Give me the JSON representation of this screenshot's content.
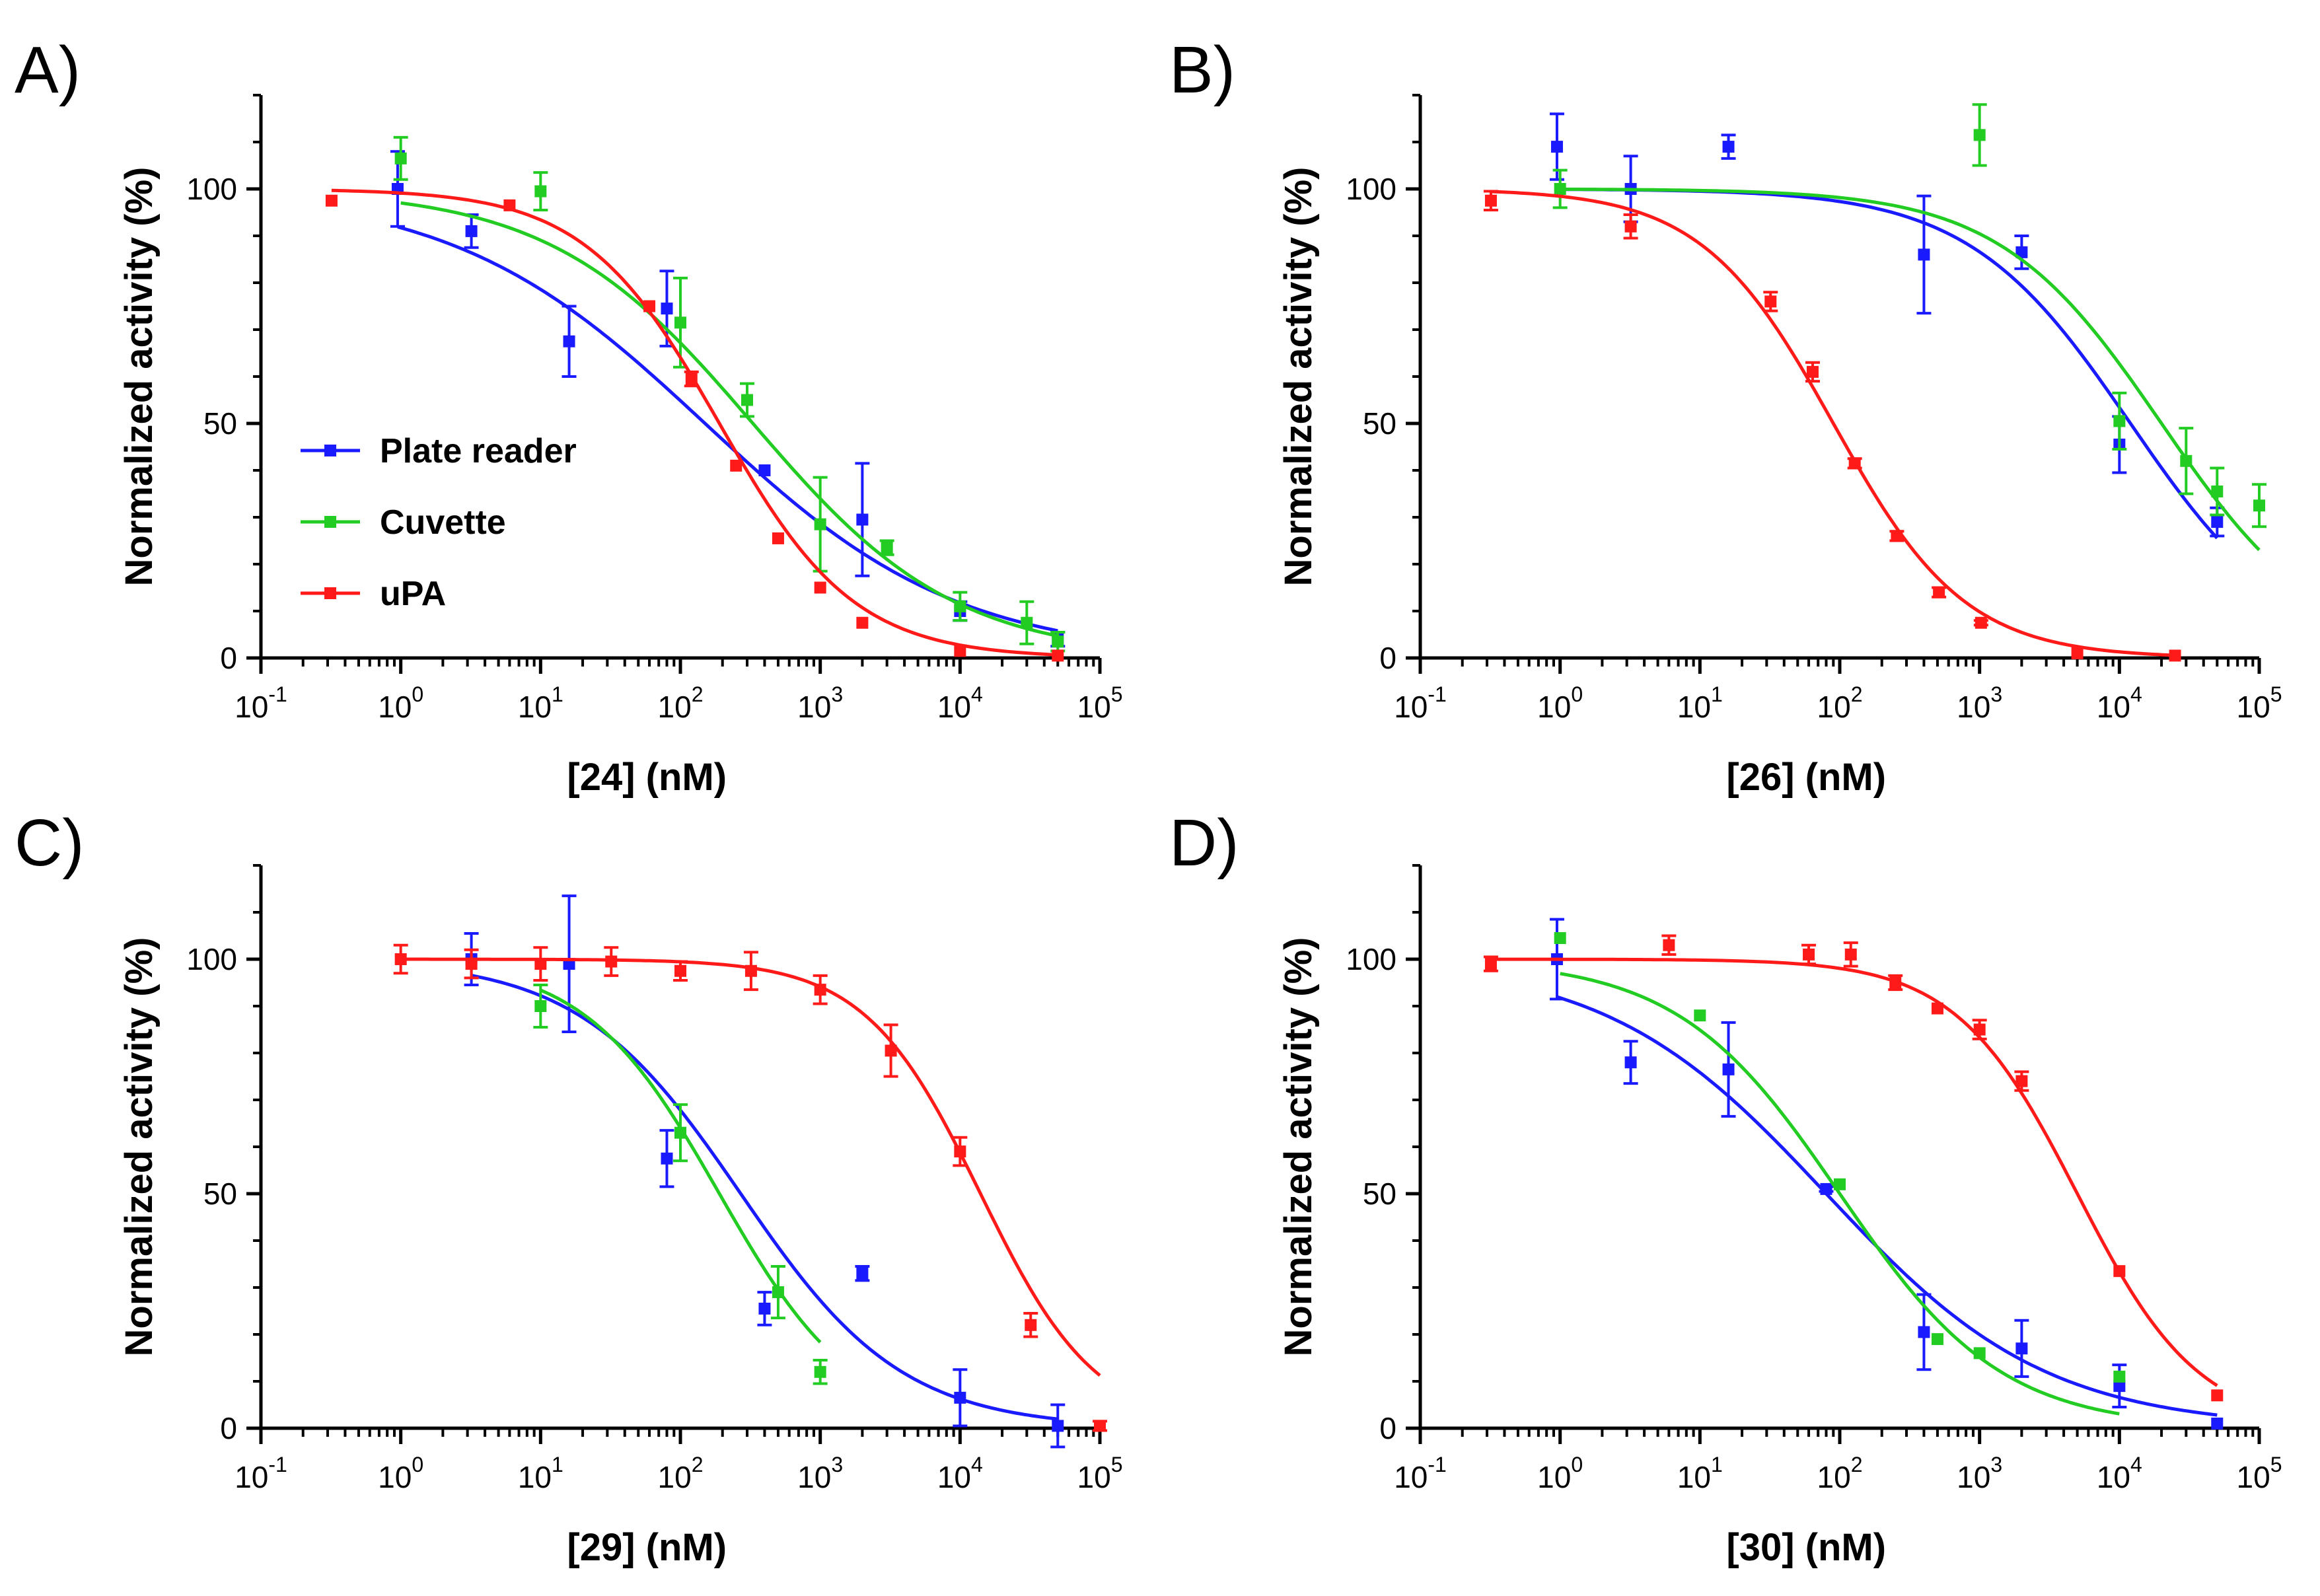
{
  "colors": {
    "plate_reader": "#1a1aff",
    "cuvette": "#22cc22",
    "upa": "#ff1a1a",
    "axis": "#000000"
  },
  "legend": {
    "entries": [
      "Plate reader",
      "Cuvette",
      "uPA"
    ]
  },
  "chart_data": [
    {
      "type": "scatter",
      "panel": "A)",
      "title": "",
      "xlabel": "[24] (nM)",
      "ylabel": "Normalized activity (%)",
      "xscale": "log",
      "xlim_exp": [
        -1,
        5
      ],
      "ylim": [
        0,
        120
      ],
      "yticks": [
        "0",
        "50",
        "100"
      ],
      "xticks": [
        {
          "base": "10",
          "exp": "-1"
        },
        {
          "base": "10",
          "exp": "0"
        },
        {
          "base": "10",
          "exp": "1"
        },
        {
          "base": "10",
          "exp": "2"
        },
        {
          "base": "10",
          "exp": "3"
        },
        {
          "base": "10",
          "exp": "4"
        },
        {
          "base": "10",
          "exp": "5"
        }
      ],
      "legend_position": "middle-left",
      "series": [
        {
          "name": "Plate reader",
          "color_key": "plate_reader",
          "points": [
            {
              "x": 0.95,
              "y": 100,
              "err": 8
            },
            {
              "x": 3.2,
              "y": 91,
              "err": 3.5
            },
            {
              "x": 16,
              "y": 67.5,
              "err": 7.5
            },
            {
              "x": 80,
              "y": 74.5,
              "err": 8
            },
            {
              "x": 400,
              "y": 40,
              "err": 0
            },
            {
              "x": 2000,
              "y": 29.5,
              "err": 12
            },
            {
              "x": 10000,
              "y": 10,
              "err": 2
            },
            {
              "x": 50000,
              "y": 4,
              "err": 1.5
            }
          ],
          "fit": {
            "top": 100,
            "bottom": 0,
            "ic50": 150,
            "hill": 0.48
          }
        },
        {
          "name": "Cuvette",
          "color_key": "cuvette",
          "points": [
            {
              "x": 1,
              "y": 106.5,
              "err": 4.5
            },
            {
              "x": 10,
              "y": 99.5,
              "err": 4
            },
            {
              "x": 100,
              "y": 71.5,
              "err": 9.5
            },
            {
              "x": 300,
              "y": 55,
              "err": 3.5
            },
            {
              "x": 1000,
              "y": 28.5,
              "err": 10
            },
            {
              "x": 3000,
              "y": 23.5,
              "err": 1.5
            },
            {
              "x": 10000,
              "y": 11,
              "err": 3
            },
            {
              "x": 30000,
              "y": 7.5,
              "err": 4.5
            },
            {
              "x": 50000,
              "y": 3.5,
              "err": 2
            }
          ],
          "fit": {
            "top": 100,
            "bottom": 0,
            "ic50": 330,
            "hill": 0.6
          }
        },
        {
          "name": "uPA",
          "color_key": "upa",
          "points": [
            {
              "x": 0.32,
              "y": 97.5,
              "err": 0
            },
            {
              "x": 6,
              "y": 96.5,
              "err": 0
            },
            {
              "x": 60,
              "y": 75,
              "err": 0
            },
            {
              "x": 120,
              "y": 59.5,
              "err": 1.5
            },
            {
              "x": 250,
              "y": 41,
              "err": 0
            },
            {
              "x": 500,
              "y": 25.5,
              "err": 0
            },
            {
              "x": 1000,
              "y": 15,
              "err": 0
            },
            {
              "x": 2000,
              "y": 7.5,
              "err": 0
            },
            {
              "x": 10000,
              "y": 1.5,
              "err": 0
            },
            {
              "x": 50000,
              "y": 0.5,
              "err": 0
            }
          ],
          "fit": {
            "top": 100,
            "bottom": 0,
            "ic50": 190,
            "hill": 0.9
          }
        }
      ]
    },
    {
      "type": "scatter",
      "panel": "B)",
      "title": "",
      "xlabel": "[26] (nM)",
      "ylabel": "Normalized activity (%)",
      "xscale": "log",
      "xlim_exp": [
        -1,
        5
      ],
      "ylim": [
        0,
        120
      ],
      "yticks": [
        "0",
        "50",
        "100"
      ],
      "xticks": [
        {
          "base": "10",
          "exp": "-1"
        },
        {
          "base": "10",
          "exp": "0"
        },
        {
          "base": "10",
          "exp": "1"
        },
        {
          "base": "10",
          "exp": "2"
        },
        {
          "base": "10",
          "exp": "3"
        },
        {
          "base": "10",
          "exp": "4"
        },
        {
          "base": "10",
          "exp": "5"
        }
      ],
      "series": [
        {
          "name": "Plate reader",
          "color_key": "plate_reader",
          "points": [
            {
              "x": 0.95,
              "y": 109,
              "err": 7
            },
            {
              "x": 3.2,
              "y": 100,
              "err": 7
            },
            {
              "x": 16,
              "y": 109,
              "err": 2.5
            },
            {
              "x": 400,
              "y": 86,
              "err": 12.5
            },
            {
              "x": 2000,
              "y": 86.5,
              "err": 3.5
            },
            {
              "x": 10000,
              "y": 45.5,
              "err": 6
            },
            {
              "x": 50000,
              "y": 29,
              "err": 3
            }
          ],
          "fit": {
            "top": 100,
            "bottom": 0,
            "ic50": 12000,
            "hill": 0.75
          }
        },
        {
          "name": "Cuvette",
          "color_key": "cuvette",
          "points": [
            {
              "x": 1,
              "y": 100,
              "err": 4
            },
            {
              "x": 1000,
              "y": 111.5,
              "err": 6.5
            },
            {
              "x": 10000,
              "y": 50.5,
              "err": 6
            },
            {
              "x": 30000,
              "y": 42,
              "err": 7
            },
            {
              "x": 50000,
              "y": 35.5,
              "err": 5
            },
            {
              "x": 100000,
              "y": 32.5,
              "err": 4.5
            }
          ],
          "fit": {
            "top": 100,
            "bottom": 0,
            "ic50": 20000,
            "hill": 0.75
          }
        },
        {
          "name": "uPA",
          "color_key": "upa",
          "points": [
            {
              "x": 0.32,
              "y": 97.5,
              "err": 2
            },
            {
              "x": 3.2,
              "y": 92,
              "err": 2.5
            },
            {
              "x": 32,
              "y": 76,
              "err": 2
            },
            {
              "x": 64,
              "y": 61,
              "err": 2
            },
            {
              "x": 128,
              "y": 41.5,
              "err": 1
            },
            {
              "x": 256,
              "y": 26,
              "err": 1
            },
            {
              "x": 512,
              "y": 14,
              "err": 1
            },
            {
              "x": 1024,
              "y": 7.5,
              "err": 0.5
            },
            {
              "x": 5000,
              "y": 1,
              "err": 0
            },
            {
              "x": 25000,
              "y": 0.5,
              "err": 0
            }
          ],
          "fit": {
            "top": 100,
            "bottom": 0,
            "ic50": 90,
            "hill": 0.92
          }
        }
      ]
    },
    {
      "type": "scatter",
      "panel": "C)",
      "title": "",
      "xlabel": "[29] (nM)",
      "ylabel": "Normalized activity (%)",
      "xscale": "log",
      "xlim_exp": [
        -1,
        5
      ],
      "ylim": [
        0,
        120
      ],
      "yticks": [
        "0",
        "50",
        "100"
      ],
      "xticks": [
        {
          "base": "10",
          "exp": "-1"
        },
        {
          "base": "10",
          "exp": "0"
        },
        {
          "base": "10",
          "exp": "1"
        },
        {
          "base": "10",
          "exp": "2"
        },
        {
          "base": "10",
          "exp": "3"
        },
        {
          "base": "10",
          "exp": "4"
        },
        {
          "base": "10",
          "exp": "5"
        }
      ],
      "series": [
        {
          "name": "Plate reader",
          "color_key": "plate_reader",
          "points": [
            {
              "x": 3.2,
              "y": 100,
              "err": 5.5
            },
            {
              "x": 16,
              "y": 99,
              "err": 14.5
            },
            {
              "x": 80,
              "y": 57.5,
              "err": 6
            },
            {
              "x": 400,
              "y": 25.5,
              "err": 3.5
            },
            {
              "x": 2000,
              "y": 33,
              "err": 1.5
            },
            {
              "x": 10000,
              "y": 6.5,
              "err": 6
            },
            {
              "x": 50000,
              "y": 0.5,
              "err": 4.5
            }
          ],
          "fit": {
            "top": 100,
            "bottom": 0,
            "ic50": 270,
            "hill": 0.75
          }
        },
        {
          "name": "Cuvette",
          "color_key": "cuvette",
          "points": [
            {
              "x": 10,
              "y": 90,
              "err": 4.5
            },
            {
              "x": 100,
              "y": 63,
              "err": 6
            },
            {
              "x": 500,
              "y": 29,
              "err": 5.5
            },
            {
              "x": 1000,
              "y": 12,
              "err": 2.5
            }
          ],
          "fit": {
            "top": 100,
            "bottom": 0,
            "ic50": 190,
            "hill": 0.9
          }
        },
        {
          "name": "uPA",
          "color_key": "upa",
          "points": [
            {
              "x": 1,
              "y": 100,
              "err": 3
            },
            {
              "x": 3.2,
              "y": 99,
              "err": 3
            },
            {
              "x": 10,
              "y": 99,
              "err": 3.5
            },
            {
              "x": 32,
              "y": 99.5,
              "err": 3
            },
            {
              "x": 100,
              "y": 97.5,
              "err": 2
            },
            {
              "x": 320,
              "y": 97.5,
              "err": 4
            },
            {
              "x": 1000,
              "y": 93.5,
              "err": 3
            },
            {
              "x": 3200,
              "y": 80.5,
              "err": 5.5
            },
            {
              "x": 10000,
              "y": 59,
              "err": 3
            },
            {
              "x": 32000,
              "y": 22,
              "err": 2.5
            },
            {
              "x": 100000,
              "y": 0.5,
              "err": 1
            }
          ],
          "fit": {
            "top": 100,
            "bottom": 0,
            "ic50": 14000,
            "hill": 1.05
          }
        }
      ]
    },
    {
      "type": "scatter",
      "panel": "D)",
      "title": "",
      "xlabel": "[30] (nM)",
      "ylabel": "Normalized activity (%)",
      "xscale": "log",
      "xlim_exp": [
        -1,
        5
      ],
      "ylim": [
        0,
        120
      ],
      "yticks": [
        "0",
        "50",
        "100"
      ],
      "xticks": [
        {
          "base": "10",
          "exp": "-1"
        },
        {
          "base": "10",
          "exp": "0"
        },
        {
          "base": "10",
          "exp": "1"
        },
        {
          "base": "10",
          "exp": "2"
        },
        {
          "base": "10",
          "exp": "3"
        },
        {
          "base": "10",
          "exp": "4"
        },
        {
          "base": "10",
          "exp": "5"
        }
      ],
      "series": [
        {
          "name": "Plate reader",
          "color_key": "plate_reader",
          "points": [
            {
              "x": 0.95,
              "y": 100,
              "err": 8.5
            },
            {
              "x": 3.2,
              "y": 78,
              "err": 4.5
            },
            {
              "x": 16,
              "y": 76.5,
              "err": 10
            },
            {
              "x": 80,
              "y": 51,
              "err": 0.5
            },
            {
              "x": 400,
              "y": 20.5,
              "err": 8
            },
            {
              "x": 2000,
              "y": 17,
              "err": 6
            },
            {
              "x": 10000,
              "y": 9,
              "err": 4.5
            },
            {
              "x": 50000,
              "y": 1,
              "err": 0
            }
          ],
          "fit": {
            "top": 100,
            "bottom": 0,
            "ic50": 80,
            "hill": 0.55
          }
        },
        {
          "name": "Cuvette",
          "color_key": "cuvette",
          "points": [
            {
              "x": 1,
              "y": 104.5,
              "err": 0
            },
            {
              "x": 10,
              "y": 88,
              "err": 0
            },
            {
              "x": 100,
              "y": 52,
              "err": 0
            },
            {
              "x": 500,
              "y": 19,
              "err": 0
            },
            {
              "x": 1000,
              "y": 16,
              "err": 0
            },
            {
              "x": 10000,
              "y": 11,
              "err": 0
            }
          ],
          "fit": {
            "top": 100,
            "bottom": 0,
            "ic50": 100,
            "hill": 0.75
          }
        },
        {
          "name": "uPA",
          "color_key": "upa",
          "points": [
            {
              "x": 0.32,
              "y": 99,
              "err": 1.5
            },
            {
              "x": 6,
              "y": 103,
              "err": 2
            },
            {
              "x": 60,
              "y": 101,
              "err": 2
            },
            {
              "x": 120,
              "y": 101,
              "err": 2.5
            },
            {
              "x": 250,
              "y": 95,
              "err": 1.5
            },
            {
              "x": 500,
              "y": 89.5,
              "err": 0
            },
            {
              "x": 1000,
              "y": 85,
              "err": 2
            },
            {
              "x": 2000,
              "y": 74,
              "err": 2
            },
            {
              "x": 10000,
              "y": 33.5,
              "err": 0
            },
            {
              "x": 50000,
              "y": 7,
              "err": 0
            }
          ],
          "fit": {
            "top": 100,
            "bottom": 0,
            "ic50": 5000,
            "hill": 1.0
          }
        }
      ]
    }
  ]
}
